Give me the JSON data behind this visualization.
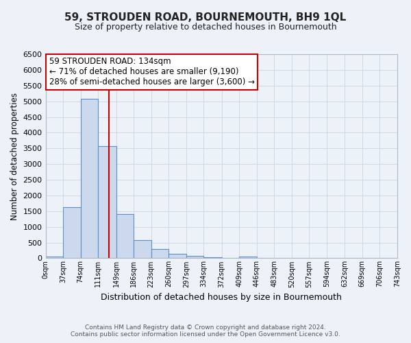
{
  "title": "59, STROUDEN ROAD, BOURNEMOUTH, BH9 1QL",
  "subtitle": "Size of property relative to detached houses in Bournemouth",
  "xlabel": "Distribution of detached houses by size in Bournemouth",
  "ylabel": "Number of detached properties",
  "footer_line1": "Contains HM Land Registry data © Crown copyright and database right 2024.",
  "footer_line2": "Contains public sector information licensed under the Open Government Licence v3.0.",
  "bin_edges": [
    0,
    37,
    74,
    111,
    149,
    186,
    223,
    260,
    297,
    334,
    372,
    409,
    446,
    483,
    520,
    557,
    594,
    632,
    669,
    706,
    743
  ],
  "bin_labels": [
    "0sqm",
    "37sqm",
    "74sqm",
    "111sqm",
    "149sqm",
    "186sqm",
    "223sqm",
    "260sqm",
    "297sqm",
    "334sqm",
    "372sqm",
    "409sqm",
    "446sqm",
    "483sqm",
    "520sqm",
    "557sqm",
    "594sqm",
    "632sqm",
    "669sqm",
    "706sqm",
    "743sqm"
  ],
  "bar_heights": [
    50,
    1620,
    5080,
    3580,
    1410,
    580,
    290,
    145,
    80,
    30,
    15,
    50,
    0,
    0,
    0,
    0,
    0,
    0,
    0,
    0
  ],
  "bar_color": "#ccd9ec",
  "bar_edge_color": "#5b8fc9",
  "vline_x": 134,
  "vline_color": "#cc0000",
  "ylim": [
    0,
    6500
  ],
  "yticks": [
    0,
    500,
    1000,
    1500,
    2000,
    2500,
    3000,
    3500,
    4000,
    4500,
    5000,
    5500,
    6000,
    6500
  ],
  "annotation_title": "59 STROUDEN ROAD: 134sqm",
  "annotation_line1": "← 71% of detached houses are smaller (9,190)",
  "annotation_line2": "28% of semi-detached houses are larger (3,600) →",
  "annotation_box_color": "#ffffff",
  "annotation_box_edge": "#cc0000",
  "grid_color": "#d0d8e8",
  "background_color": "#edf2f9"
}
